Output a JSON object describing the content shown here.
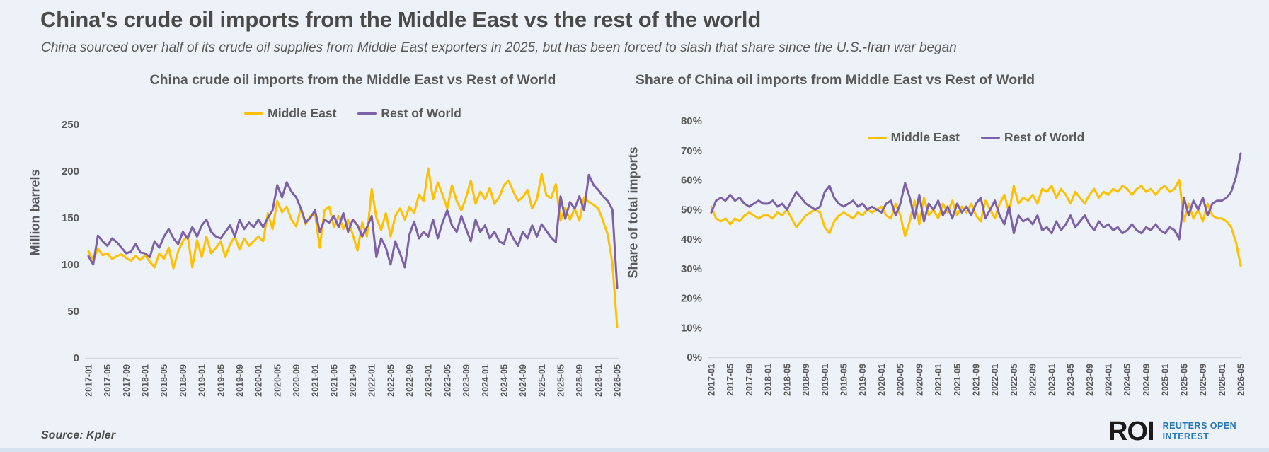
{
  "header": {
    "title": "China's crude oil imports from the Middle East vs the rest of the world",
    "subtitle": "China sourced over half of its crude oil supplies from Middle East exporters in 2025, but has been forced to slash that share since the U.S.-Iran war began"
  },
  "footer": {
    "source_label": "Source:  Kpler",
    "logo": {
      "mark": "ROI",
      "line1": "REUTERS OPEN",
      "line2": "INTEREST"
    }
  },
  "colors": {
    "background": "#edf2f8",
    "middle_east": "#FFC000",
    "rest_of_world": "#7D60A8",
    "text": "#595959",
    "logo_blue": "#2878b8",
    "bottom_bar": "#d5e3f0"
  },
  "chart_data": [
    {
      "type": "line",
      "title": "China crude oil imports from the Middle East vs Rest of World",
      "ylabel": "Million barrels",
      "ylim": [
        0,
        250
      ],
      "ytick_labels": [
        "0",
        "50",
        "100",
        "150",
        "200",
        "250"
      ],
      "grid": false,
      "legend_position": "top-center",
      "n_points": 113,
      "xtick_every": 4,
      "x_tick_labels": [
        "2017-01",
        "2017-05",
        "2017-09",
        "2018-01",
        "2018-05",
        "2018-09",
        "2019-01",
        "2019-05",
        "2019-09",
        "2020-01",
        "2020-05",
        "2020-09",
        "2021-01",
        "2021-05",
        "2021-09",
        "2022-01",
        "2022-05",
        "2022-09",
        "2023-01",
        "2023-05",
        "2023-09",
        "2024-01",
        "2024-05",
        "2024-09",
        "2025-01",
        "2025-05",
        "2025-09",
        "2026-01",
        "2026-05"
      ],
      "series": [
        {
          "name": "Middle East",
          "color": "#FFC000",
          "values": [
            114,
            105,
            117,
            110,
            112,
            106,
            109,
            111,
            107,
            104,
            109,
            105,
            110,
            103,
            97,
            112,
            106,
            118,
            96,
            114,
            125,
            131,
            97,
            126,
            108,
            130,
            112,
            118,
            125,
            108,
            122,
            130,
            116,
            128,
            120,
            125,
            130,
            125,
            155,
            138,
            168,
            156,
            162,
            148,
            141,
            160,
            143,
            152,
            155,
            118,
            158,
            162,
            140,
            152,
            138,
            148,
            132,
            115,
            145,
            130,
            181,
            150,
            137,
            155,
            130,
            152,
            160,
            148,
            162,
            155,
            175,
            168,
            203,
            170,
            188,
            175,
            160,
            185,
            168,
            158,
            172,
            190,
            165,
            178,
            170,
            182,
            165,
            172,
            185,
            190,
            178,
            168,
            172,
            180,
            160,
            170,
            197,
            174,
            171,
            186,
            147,
            161,
            148,
            160,
            147,
            172,
            167,
            164,
            160,
            147,
            132,
            101,
            33
          ]
        },
        {
          "name": "Rest of World",
          "color": "#7D60A8",
          "values": [
            109,
            100,
            131,
            125,
            120,
            128,
            124,
            118,
            112,
            114,
            122,
            113,
            112,
            108,
            125,
            118,
            130,
            138,
            128,
            122,
            135,
            128,
            140,
            130,
            142,
            148,
            135,
            130,
            128,
            135,
            142,
            130,
            148,
            138,
            145,
            140,
            148,
            140,
            150,
            158,
            185,
            172,
            188,
            178,
            172,
            160,
            145,
            150,
            158,
            135,
            148,
            145,
            152,
            140,
            155,
            135,
            148,
            142,
            130,
            140,
            152,
            108,
            128,
            118,
            100,
            125,
            112,
            97,
            132,
            146,
            128,
            135,
            130,
            148,
            128,
            145,
            158,
            142,
            135,
            152,
            138,
            125,
            148,
            135,
            142,
            128,
            135,
            125,
            122,
            138,
            128,
            120,
            135,
            128,
            142,
            130,
            143,
            136,
            129,
            124,
            173,
            149,
            167,
            160,
            173,
            158,
            196,
            185,
            180,
            173,
            168,
            159,
            75
          ]
        }
      ]
    },
    {
      "type": "line",
      "title": "Share of China oil imports from Middle East vs  Rest of World",
      "ylabel": "Share of total imports",
      "ylim": [
        0,
        80
      ],
      "ytick_labels": [
        "0%",
        "10%",
        "20%",
        "30%",
        "40%",
        "50%",
        "60%",
        "70%",
        "80%"
      ],
      "grid": false,
      "legend_position": "top-center",
      "n_points": 113,
      "xtick_every": 4,
      "x_tick_labels": [
        "2017-01",
        "2017-05",
        "2017-09",
        "2018-01",
        "2018-05",
        "2018-09",
        "2019-01",
        "2019-05",
        "2019-09",
        "2020-01",
        "2020-05",
        "2020-09",
        "2021-01",
        "2021-05",
        "2021-09",
        "2022-01",
        "2022-05",
        "2022-09",
        "2023-01",
        "2023-05",
        "2023-09",
        "2024-01",
        "2024-05",
        "2024-09",
        "2025-01",
        "2025-05",
        "2025-09",
        "2026-01",
        "2026-05"
      ],
      "series": [
        {
          "name": "Middle East",
          "color": "#FFC000",
          "values": [
            51,
            47,
            46,
            47,
            45,
            47,
            46,
            48,
            49,
            48,
            47,
            48,
            48,
            47,
            49,
            48,
            50,
            47,
            44,
            46,
            48,
            49,
            50,
            49,
            44,
            42,
            46,
            48,
            49,
            48,
            47,
            49,
            48,
            50,
            49,
            50,
            51,
            48,
            47,
            52,
            48,
            41,
            46,
            53,
            45,
            54,
            48,
            50,
            47,
            52,
            49,
            53,
            48,
            51,
            49,
            52,
            48,
            46,
            53,
            50,
            47,
            52,
            55,
            49,
            58,
            52,
            54,
            53,
            55,
            52,
            57,
            56,
            58,
            54,
            57,
            55,
            52,
            56,
            54,
            52,
            55,
            57,
            54,
            56,
            55,
            57,
            56,
            58,
            57,
            55,
            57,
            58,
            56,
            57,
            55,
            57,
            58,
            56,
            57,
            60,
            46,
            52,
            47,
            50,
            46,
            52,
            48,
            47,
            47,
            46,
            44,
            39,
            31
          ]
        },
        {
          "name": "Rest of World",
          "color": "#7D60A8",
          "values": [
            49,
            53,
            54,
            53,
            55,
            53,
            54,
            52,
            51,
            52,
            53,
            52,
            52,
            53,
            51,
            52,
            50,
            53,
            56,
            54,
            52,
            51,
            50,
            51,
            56,
            58,
            54,
            52,
            51,
            52,
            53,
            51,
            52,
            50,
            51,
            50,
            49,
            52,
            53,
            48,
            52,
            59,
            54,
            47,
            55,
            46,
            52,
            50,
            53,
            48,
            51,
            47,
            52,
            49,
            51,
            48,
            52,
            54,
            47,
            50,
            53,
            48,
            45,
            51,
            42,
            48,
            46,
            47,
            45,
            48,
            43,
            44,
            42,
            46,
            43,
            45,
            48,
            44,
            46,
            48,
            45,
            43,
            46,
            44,
            45,
            43,
            44,
            42,
            43,
            45,
            43,
            42,
            44,
            43,
            45,
            43,
            42,
            44,
            43,
            40,
            54,
            48,
            53,
            50,
            54,
            48,
            52,
            53,
            53,
            54,
            56,
            61,
            69
          ]
        }
      ]
    }
  ]
}
